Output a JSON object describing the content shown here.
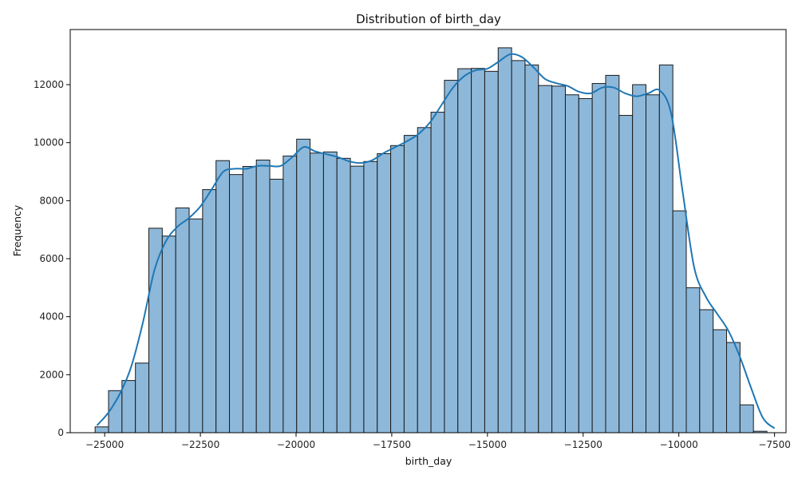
{
  "chart_data": {
    "type": "bar",
    "subtype": "histogram-with-kde",
    "title": "Distribution of birth_day",
    "xlabel": "birth_day",
    "ylabel": "Frequency",
    "xlim": [
      -25900,
      -7200
    ],
    "ylim": [
      0,
      13900
    ],
    "x_ticks": [
      -25000,
      -22500,
      -20000,
      -17500,
      -15000,
      -12500,
      -10000,
      -7500
    ],
    "x_tick_labels": [
      "−25000",
      "−22500",
      "−20000",
      "−17500",
      "−15000",
      "−12500",
      "−10000",
      "−7500"
    ],
    "y_ticks": [
      0,
      2000,
      4000,
      6000,
      8000,
      10000,
      12000
    ],
    "y_tick_labels": [
      "0",
      "2000",
      "4000",
      "6000",
      "8000",
      "10000",
      "12000"
    ],
    "bin_start": -25250,
    "bin_width": 351,
    "values": [
      200,
      1450,
      1800,
      2400,
      7050,
      6780,
      7750,
      7370,
      8380,
      9380,
      8900,
      9180,
      9400,
      8740,
      9540,
      10120,
      9640,
      9680,
      9460,
      9190,
      9350,
      9620,
      9900,
      10250,
      10520,
      11050,
      12150,
      12550,
      12560,
      12460,
      13270,
      12830,
      12680,
      11970,
      11950,
      11650,
      11520,
      12040,
      12320,
      10940,
      12000,
      11650,
      12680,
      7650,
      5000,
      4240,
      3550,
      3110,
      960,
      50
    ],
    "kde": {
      "x": [
        -25200,
        -24900,
        -24600,
        -24300,
        -24000,
        -23700,
        -23400,
        -23100,
        -22800,
        -22500,
        -22200,
        -21900,
        -21600,
        -21300,
        -21000,
        -20700,
        -20400,
        -20100,
        -19800,
        -19500,
        -19200,
        -18900,
        -18600,
        -18300,
        -18000,
        -17700,
        -17400,
        -17100,
        -16800,
        -16500,
        -16200,
        -15900,
        -15600,
        -15300,
        -15000,
        -14700,
        -14400,
        -14100,
        -13800,
        -13500,
        -13200,
        -12900,
        -12600,
        -12300,
        -12000,
        -11700,
        -11400,
        -11100,
        -10800,
        -10500,
        -10200,
        -9900,
        -9600,
        -9300,
        -9000,
        -8700,
        -8400,
        -8100,
        -7800,
        -7500
      ],
      "y": [
        250,
        700,
        1350,
        2300,
        3800,
        5600,
        6600,
        7100,
        7400,
        7800,
        8400,
        9000,
        9100,
        9100,
        9200,
        9200,
        9200,
        9500,
        9850,
        9700,
        9600,
        9500,
        9350,
        9300,
        9400,
        9650,
        9850,
        10050,
        10300,
        10700,
        11300,
        11900,
        12300,
        12500,
        12550,
        12800,
        13050,
        12950,
        12600,
        12200,
        12050,
        11950,
        11750,
        11700,
        11900,
        11900,
        11700,
        11600,
        11700,
        11800,
        11000,
        8300,
        5700,
        4700,
        4100,
        3500,
        2600,
        1500,
        500,
        150
      ]
    },
    "colors": {
      "bar_fill": "#8db8da",
      "bar_edge": "#1a1a1a",
      "kde_line": "#1f77b4"
    },
    "grid": false,
    "legend": "none"
  }
}
